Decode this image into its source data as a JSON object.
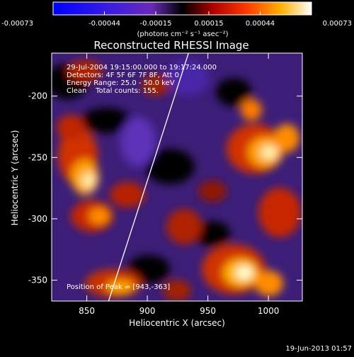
{
  "colorbar": {
    "ticks": [
      "-0.00073",
      "-0.00044",
      "-0.00015",
      "0.00015",
      "0.00044",
      "0.00073"
    ],
    "tick_values": [
      -0.00073,
      -0.00044,
      -0.00015,
      0.00015,
      0.00044,
      0.00073
    ],
    "units": "(photons cm⁻² s⁻¹ asec⁻²)"
  },
  "title": "Reconstructed RHESSI Image",
  "annotations": {
    "time": "29-Jul-2004 19:15:00.000 to 19:17:24.000",
    "detectors": "Detectors: 4F 5F 6F 7F 8F, Att 0",
    "energy": "Energy Range: 25.0 - 50.0 keV",
    "clean": "Clean    Total counts: 155.",
    "peak": "Position of Peak = [943,-363]"
  },
  "axes": {
    "xlabel": "Heliocentric X (arcsec)",
    "ylabel": "Heliocentric Y (arcsec)",
    "xlim": [
      821,
      1028
    ],
    "ylim": [
      -367,
      -165
    ],
    "xticks": [
      "850",
      "900",
      "950",
      "1000"
    ],
    "xtick_values": [
      850,
      900,
      950,
      1000
    ],
    "yticks": [
      "-200",
      "-250",
      "-300",
      "-350"
    ],
    "ytick_values": [
      -200,
      -250,
      -300,
      -350
    ]
  },
  "limb_line": {
    "from": [
      868,
      -367
    ],
    "to": [
      934,
      -165
    ]
  },
  "footer": {
    "date": "19-Jun-2013 01:57"
  },
  "colors": {
    "background": "#000000",
    "text": "#ffffff"
  }
}
